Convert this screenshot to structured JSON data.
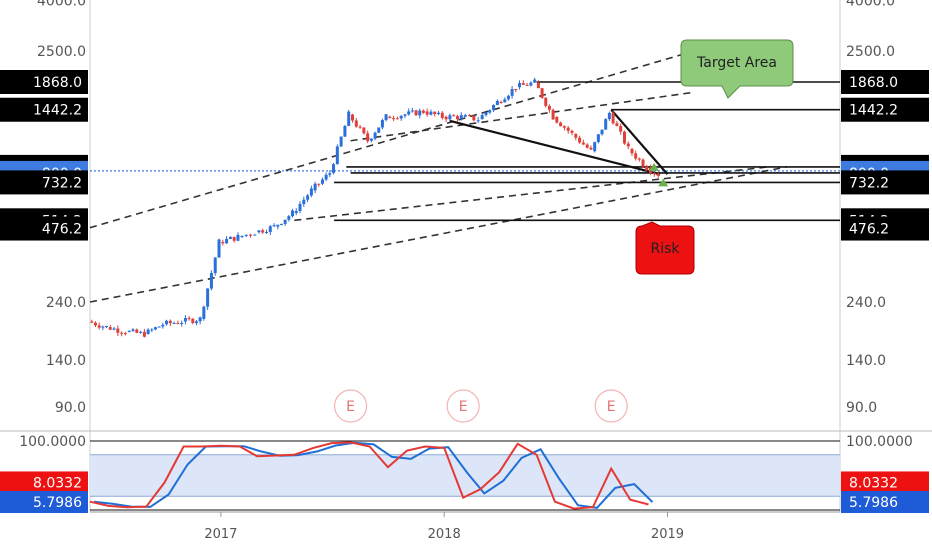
{
  "chart_data": {
    "type": "line",
    "subtype": "log-candlestick-with-stochastic",
    "price_axis": {
      "scale": "log",
      "ticks": [
        "4000.0",
        "2500.0",
        "240.0",
        "140.0",
        "90.0"
      ],
      "tick_values": [
        4000,
        2500,
        240,
        140,
        90
      ],
      "badges": [
        {
          "label": "1868.0",
          "value": 1868,
          "color": "#000000"
        },
        {
          "label": "1442.2",
          "value": 1442.2,
          "color": "#000000"
        },
        {
          "label": "846.2",
          "value": 846.2,
          "color": "#000000"
        },
        {
          "label": "800.0",
          "value": 800,
          "color": "#3d7be0"
        },
        {
          "label": "732.2",
          "value": 732.2,
          "color": "#000000"
        },
        {
          "label": "514.2",
          "value": 514.2,
          "color": "#000000"
        },
        {
          "label": "476.2",
          "value": 476.2,
          "color": "#000000"
        }
      ]
    },
    "time_axis": {
      "ticks": [
        "2017",
        "2018",
        "2019"
      ],
      "tick_dates": [
        "2017-01-01",
        "2018-01-01",
        "2019-01-01"
      ],
      "range": [
        "2016-06-01",
        "2019-10-10"
      ]
    },
    "price_series": [
      {
        "date": "2016-06-01",
        "price": 200
      },
      {
        "date": "2016-07-01",
        "price": 190
      },
      {
        "date": "2016-08-01",
        "price": 182
      },
      {
        "date": "2016-09-01",
        "price": 178
      },
      {
        "date": "2016-10-01",
        "price": 195
      },
      {
        "date": "2016-11-01",
        "price": 200
      },
      {
        "date": "2016-12-01",
        "price": 205
      },
      {
        "date": "2017-01-01",
        "price": 420
      },
      {
        "date": "2017-02-01",
        "price": 440
      },
      {
        "date": "2017-03-01",
        "price": 460
      },
      {
        "date": "2017-04-01",
        "price": 485
      },
      {
        "date": "2017-05-01",
        "price": 550
      },
      {
        "date": "2017-06-01",
        "price": 680
      },
      {
        "date": "2017-07-01",
        "price": 800
      },
      {
        "date": "2017-08-01",
        "price": 1380
      },
      {
        "date": "2017-09-01",
        "price": 1080
      },
      {
        "date": "2017-10-01",
        "price": 1350
      },
      {
        "date": "2017-11-01",
        "price": 1380
      },
      {
        "date": "2017-12-01",
        "price": 1420
      },
      {
        "date": "2018-01-01",
        "price": 1350
      },
      {
        "date": "2018-02-01",
        "price": 1350
      },
      {
        "date": "2018-03-01",
        "price": 1320
      },
      {
        "date": "2018-04-01",
        "price": 1550
      },
      {
        "date": "2018-05-01",
        "price": 1780
      },
      {
        "date": "2018-06-01",
        "price": 1860
      },
      {
        "date": "2018-07-01",
        "price": 1350
      },
      {
        "date": "2018-08-01",
        "price": 1150
      },
      {
        "date": "2018-09-01",
        "price": 980
      },
      {
        "date": "2018-10-01",
        "price": 1400
      },
      {
        "date": "2018-11-01",
        "price": 1000
      },
      {
        "date": "2018-12-01",
        "price": 840
      },
      {
        "date": "2018-12-20",
        "price": 790
      }
    ],
    "dotted_level": 846.2,
    "horizontal_levels": [
      {
        "value": 1868,
        "from": "2018-06-01"
      },
      {
        "value": 1442.2,
        "from": "2018-10-01"
      },
      {
        "value": 846.2,
        "from": "2017-07-25"
      },
      {
        "value": 800,
        "from": "2017-08-01"
      },
      {
        "value": 732.2,
        "from": "2017-07-05"
      },
      {
        "value": 514.2,
        "from": "2017-07-05"
      }
    ],
    "trendlines": [
      {
        "from": {
          "date": "2016-06-01",
          "price": 480
        },
        "to": {
          "date": "2019-02-15",
          "price": 2500
        },
        "dashed": true
      },
      {
        "from": {
          "date": "2017-08-01",
          "price": 1080
        },
        "to": {
          "date": "2019-02-15",
          "price": 1700
        },
        "dashed": true
      },
      {
        "from": {
          "date": "2016-06-01",
          "price": 240
        },
        "to": {
          "date": "2019-07-15",
          "price": 846.2
        },
        "dashed": true
      },
      {
        "from": {
          "date": "2017-05-01",
          "price": 514.2
        },
        "to": {
          "date": "2019-06-15",
          "price": 846.2
        },
        "dashed": true
      },
      {
        "from": {
          "date": "2018-01-10",
          "price": 1300
        },
        "to": {
          "date": "2018-12-20",
          "price": 790
        },
        "dashed": false
      },
      {
        "from": {
          "date": "2018-10-01",
          "price": 1442.2
        },
        "to": {
          "date": "2019-01-01",
          "price": 790
        },
        "dashed": false
      }
    ],
    "annotations": [
      {
        "text": "Target Area",
        "color": "#8fc97a"
      },
      {
        "text": "Risk",
        "color": "#ee1111"
      }
    ],
    "event_markers": [
      {
        "date": "2017-08-01",
        "label": "E"
      },
      {
        "date": "2018-02-01",
        "label": "E"
      },
      {
        "date": "2018-10-01",
        "label": "E"
      }
    ],
    "stochastic": {
      "ticks": [
        "100.0000"
      ],
      "badges": [
        {
          "label": "8.0332",
          "color": "#ee1111"
        },
        {
          "label": "5.7986",
          "color": "#1e5bd6"
        }
      ],
      "band": [
        20,
        80
      ],
      "k_color": "#e53935",
      "d_color": "#1e6fd6",
      "points": [
        {
          "date": "2016-06-01",
          "value": 12
        },
        {
          "date": "2016-07-01",
          "value": 6
        },
        {
          "date": "2016-08-01",
          "value": 4
        },
        {
          "date": "2016-09-01",
          "value": 5
        },
        {
          "date": "2016-10-01",
          "value": 40
        },
        {
          "date": "2016-11-01",
          "value": 92
        },
        {
          "date": "2016-12-01",
          "value": 92
        },
        {
          "date": "2017-01-01",
          "value": 93
        },
        {
          "date": "2017-02-01",
          "value": 92
        },
        {
          "date": "2017-03-01",
          "value": 78
        },
        {
          "date": "2017-04-01",
          "value": 79
        },
        {
          "date": "2017-05-01",
          "value": 80
        },
        {
          "date": "2017-06-01",
          "value": 90
        },
        {
          "date": "2017-07-01",
          "value": 97
        },
        {
          "date": "2017-08-01",
          "value": 98
        },
        {
          "date": "2017-09-01",
          "value": 92
        },
        {
          "date": "2017-10-01",
          "value": 62
        },
        {
          "date": "2017-11-01",
          "value": 86
        },
        {
          "date": "2017-12-01",
          "value": 92
        },
        {
          "date": "2018-01-01",
          "value": 90
        },
        {
          "date": "2018-02-01",
          "value": 18
        },
        {
          "date": "2018-03-01",
          "value": 30
        },
        {
          "date": "2018-04-01",
          "value": 55
        },
        {
          "date": "2018-05-01",
          "value": 96
        },
        {
          "date": "2018-06-01",
          "value": 80
        },
        {
          "date": "2018-07-01",
          "value": 12
        },
        {
          "date": "2018-08-01",
          "value": 2
        },
        {
          "date": "2018-09-01",
          "value": 4
        },
        {
          "date": "2018-10-01",
          "value": 60
        },
        {
          "date": "2018-11-01",
          "value": 15
        },
        {
          "date": "2018-12-01",
          "value": 8
        }
      ]
    }
  }
}
